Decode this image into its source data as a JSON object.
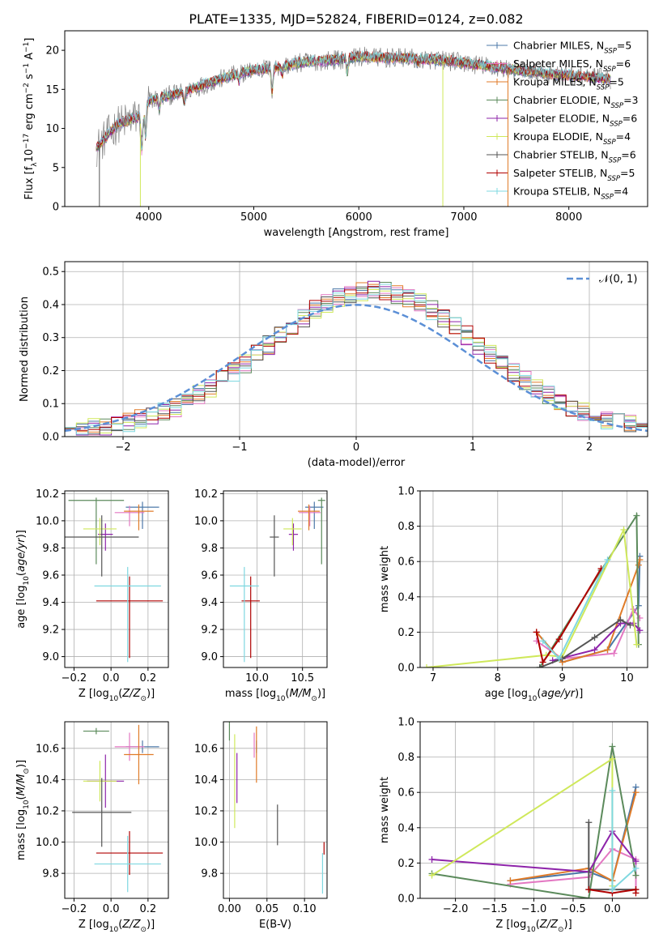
{
  "figure": {
    "title": "PLATE=1335, MJD=52824, FIBERID=0124, z=0.082"
  },
  "series_styles": [
    {
      "name": "Chabrier MILES",
      "nssp": "5",
      "color": "#4c78a8"
    },
    {
      "name": "Salpeter MILES",
      "nssp": "6",
      "color": "#e377c2"
    },
    {
      "name": "Kroupa MILES",
      "nssp": "5",
      "color": "#e07b28"
    },
    {
      "name": "Chabrier ELODIE",
      "nssp": "3",
      "color": "#5b8a5b"
    },
    {
      "name": "Salpeter ELODIE",
      "nssp": "6",
      "color": "#8e24aa"
    },
    {
      "name": "Kroupa ELODIE",
      "nssp": "4",
      "color": "#cfe85a"
    },
    {
      "name": "Chabrier STELIB",
      "nssp": "6",
      "color": "#555555"
    },
    {
      "name": "Salpeter STELIB",
      "nssp": "5",
      "color": "#b00000"
    },
    {
      "name": "Kroupa STELIB",
      "nssp": "4",
      "color": "#7fd8e0"
    }
  ],
  "chart_data": [
    {
      "id": "spectrum",
      "type": "line",
      "xlabel": "wavelength [Angstrom, rest frame]",
      "ylabel": "Flux [f_λ 10^-17 erg cm^-2 s^-1 A^-1]",
      "xlim": [
        3200,
        8750
      ],
      "ylim": [
        0,
        22.5
      ],
      "xticks": [
        4000,
        5000,
        6000,
        7000,
        8000
      ],
      "yticks": [
        0,
        5,
        10,
        15,
        20
      ],
      "grid": false,
      "legend_position": "right",
      "observed_color": "#808080",
      "observed_range": [
        3500,
        8400
      ],
      "model_range": [
        3500,
        8400
      ],
      "continuum": {
        "x": [
          3500,
          3700,
          3900,
          4000,
          4100,
          4300,
          4500,
          4800,
          5000,
          5200,
          5500,
          5800,
          6000,
          6300,
          6500,
          6800,
          7000,
          7300,
          7600,
          8000,
          8400
        ],
        "y": [
          7.5,
          10.5,
          11.5,
          13.5,
          14.0,
          14.5,
          15.5,
          16.8,
          17.5,
          17.8,
          18.5,
          18.8,
          19.2,
          19.0,
          19.0,
          18.7,
          18.4,
          17.8,
          17.3,
          16.8,
          16.3
        ]
      },
      "absorption_lines": [
        {
          "x": 3934,
          "depth": 5.0
        },
        {
          "x": 3969,
          "depth": 4.0
        },
        {
          "x": 4101,
          "depth": 1.5
        },
        {
          "x": 4340,
          "depth": 1.5
        },
        {
          "x": 4861,
          "depth": 1.0
        },
        {
          "x": 5175,
          "depth": 3.0
        },
        {
          "x": 5270,
          "depth": 1.0
        },
        {
          "x": 5890,
          "depth": 1.8
        },
        {
          "x": 6563,
          "depth": 0.8
        }
      ],
      "model_dropouts": [
        {
          "x": 3530,
          "color_index": 6
        },
        {
          "x": 3920,
          "color_index": 5
        },
        {
          "x": 6800,
          "color_index": 5
        },
        {
          "x": 7420,
          "color_index": 2
        }
      ]
    },
    {
      "id": "residuals",
      "type": "histogram",
      "xlabel": "(data-model)/error",
      "ylabel": "Normed distribution",
      "xlim": [
        -2.5,
        2.5
      ],
      "ylim": [
        0,
        0.53
      ],
      "xticks": [
        -2,
        -1,
        0,
        1,
        2
      ],
      "yticks": [
        0.0,
        0.1,
        0.2,
        0.3,
        0.4,
        0.5
      ],
      "grid": true,
      "bin_width": 0.1,
      "reference_curve": {
        "label": "𝒩(0, 1)",
        "color": "#5b8fd6",
        "mean": 0,
        "sigma": 1
      },
      "legend_position": "top-right"
    },
    {
      "id": "age-vs-z",
      "type": "errorbar",
      "xlabel": "Z [log10(Z/Z⊙)]",
      "ylabel": "age  [log10(age/yr)]",
      "xlim": [
        -0.25,
        0.31
      ],
      "ylim": [
        8.92,
        10.22
      ],
      "xticks": [
        -0.2,
        0.0,
        0.2
      ],
      "yticks": [
        9.0,
        9.2,
        9.4,
        9.6,
        9.8,
        10.0,
        10.2
      ],
      "grid": true,
      "points": [
        {
          "s": 0,
          "x": 0.17,
          "y": 10.1,
          "xerr": 0.09,
          "yerr": [
            0.04,
            0.16
          ]
        },
        {
          "s": 1,
          "x": 0.1,
          "y": 10.06,
          "xerr": 0.08,
          "yerr": [
            0.05,
            0.1
          ]
        },
        {
          "s": 2,
          "x": 0.15,
          "y": 10.07,
          "xerr": 0.08,
          "yerr": [
            0.05,
            0.14
          ]
        },
        {
          "s": 3,
          "x": -0.08,
          "y": 10.15,
          "xerr": 0.15,
          "yerr": [
            0.02,
            0.47
          ]
        },
        {
          "s": 4,
          "x": -0.03,
          "y": 9.9,
          "xerr": 0.04,
          "yerr": [
            0.08,
            0.12
          ]
        },
        {
          "s": 5,
          "x": -0.06,
          "y": 9.94,
          "xerr": 0.09,
          "yerr": [
            0.08,
            0.12
          ]
        },
        {
          "s": 6,
          "x": -0.05,
          "y": 9.88,
          "xerr": 0.2,
          "yerr": [
            0.16,
            0.29
          ]
        },
        {
          "s": 7,
          "x": 0.1,
          "y": 9.41,
          "xerr": 0.18,
          "yerr": [
            0.18,
            0.42
          ]
        },
        {
          "s": 8,
          "x": 0.09,
          "y": 9.52,
          "xerr": 0.18,
          "yerr": [
            0.14,
            0.56
          ]
        }
      ]
    },
    {
      "id": "age-vs-mass",
      "type": "errorbar",
      "xlabel": "mass [log10(M/M⊙)]",
      "ylabel": "",
      "xlim": [
        9.63,
        10.77
      ],
      "ylim": [
        8.92,
        10.22
      ],
      "xticks": [
        10.0,
        10.5
      ],
      "yticks": [
        9.0,
        9.2,
        9.4,
        9.6,
        9.8,
        10.0,
        10.2
      ],
      "grid": true,
      "points": [
        {
          "s": 0,
          "x": 10.63,
          "y": 10.1,
          "xerr": 0.1,
          "yerr": [
            0.04,
            0.16
          ]
        },
        {
          "s": 1,
          "x": 10.58,
          "y": 10.06,
          "xerr": 0.12,
          "yerr": [
            0.05,
            0.1
          ]
        },
        {
          "s": 2,
          "x": 10.57,
          "y": 10.07,
          "xerr": 0.12,
          "yerr": [
            0.05,
            0.14
          ]
        },
        {
          "s": 3,
          "x": 10.71,
          "y": 10.15,
          "xerr": 0.04,
          "yerr": [
            0.02,
            0.47
          ]
        },
        {
          "s": 4,
          "x": 10.4,
          "y": 9.9,
          "xerr": 0.05,
          "yerr": [
            0.08,
            0.12
          ]
        },
        {
          "s": 5,
          "x": 10.39,
          "y": 9.94,
          "xerr": 0.1,
          "yerr": [
            0.08,
            0.12
          ]
        },
        {
          "s": 6,
          "x": 10.19,
          "y": 9.88,
          "xerr": 0.05,
          "yerr": [
            0.16,
            0.29
          ]
        },
        {
          "s": 7,
          "x": 9.93,
          "y": 9.41,
          "xerr": 0.1,
          "yerr": [
            0.18,
            0.42
          ]
        },
        {
          "s": 8,
          "x": 9.86,
          "y": 9.52,
          "xerr": 0.16,
          "yerr": [
            0.14,
            0.56
          ]
        }
      ]
    },
    {
      "id": "mass-weight-vs-age",
      "type": "line",
      "xlabel": "age  [log10(age/yr)]",
      "ylabel": "mass weight",
      "xlim": [
        6.8,
        10.32
      ],
      "ylim": [
        0,
        1.0
      ],
      "xticks": [
        7,
        8,
        9,
        10
      ],
      "yticks": [
        0.0,
        0.2,
        0.4,
        0.6,
        0.8,
        1.0
      ],
      "grid": true,
      "series": [
        {
          "s": 0,
          "x": [
            8.6,
            9.0,
            9.7,
            10.18,
            10.2
          ],
          "y": [
            0.2,
            0.03,
            0.1,
            0.35,
            0.63
          ]
        },
        {
          "s": 1,
          "x": [
            8.6,
            9.0,
            9.8,
            10.1,
            10.2
          ],
          "y": [
            0.15,
            0.05,
            0.08,
            0.33,
            0.28
          ]
        },
        {
          "s": 2,
          "x": [
            8.6,
            9.0,
            9.7,
            10.18,
            10.2
          ],
          "y": [
            0.2,
            0.03,
            0.1,
            0.58,
            0.61
          ]
        },
        {
          "s": 3,
          "x": [
            8.65,
            9.6,
            10.15,
            10.18
          ],
          "y": [
            0.0,
            0.55,
            0.86,
            0.13
          ]
        },
        {
          "s": 4,
          "x": [
            8.85,
            9.5,
            9.9,
            10.1,
            10.2
          ],
          "y": [
            0.04,
            0.1,
            0.25,
            0.25,
            0.21
          ]
        },
        {
          "s": 5,
          "x": [
            6.9,
            8.75,
            9.0,
            9.95,
            10.15
          ],
          "y": [
            0.0,
            0.07,
            0.06,
            0.78,
            0.13
          ]
        },
        {
          "s": 6,
          "x": [
            8.65,
            9.0,
            9.5,
            9.9,
            10.05
          ],
          "y": [
            0.0,
            0.05,
            0.17,
            0.27,
            0.24
          ]
        },
        {
          "s": 7,
          "x": [
            8.6,
            8.7,
            8.95,
            9.6
          ],
          "y": [
            0.2,
            0.03,
            0.16,
            0.56
          ]
        },
        {
          "s": 8,
          "x": [
            8.7,
            8.95,
            9.7
          ],
          "y": [
            0.15,
            0.05,
            0.61
          ]
        }
      ]
    },
    {
      "id": "mass-vs-z",
      "type": "errorbar",
      "xlabel": "Z [log10(Z/Z⊙)]",
      "ylabel": "mass [log10(M/M⊙)]",
      "xlim": [
        -0.25,
        0.31
      ],
      "ylim": [
        9.64,
        10.77
      ],
      "xticks": [
        -0.2,
        0.0,
        0.2
      ],
      "yticks": [
        9.8,
        10.0,
        10.2,
        10.4,
        10.6
      ],
      "grid": true,
      "points": [
        {
          "s": 0,
          "x": 0.17,
          "y": 10.61,
          "xerr": 0.09,
          "yerr": 0.04
        },
        {
          "s": 1,
          "x": 0.1,
          "y": 10.61,
          "xerr": 0.08,
          "yerr": 0.09
        },
        {
          "s": 2,
          "x": 0.15,
          "y": 10.56,
          "xerr": 0.08,
          "yerr": 0.19
        },
        {
          "s": 3,
          "x": -0.08,
          "y": 10.71,
          "xerr": 0.07,
          "yerr": 0.02
        },
        {
          "s": 4,
          "x": -0.03,
          "y": 10.39,
          "xerr": 0.1,
          "yerr": 0.17
        },
        {
          "s": 5,
          "x": -0.06,
          "y": 10.39,
          "xerr": 0.09,
          "yerr": 0.13
        },
        {
          "s": 6,
          "x": -0.05,
          "y": 10.19,
          "xerr": 0.16,
          "yerr": 0.22
        },
        {
          "s": 7,
          "x": 0.1,
          "y": 9.93,
          "xerr": 0.18,
          "yerr": 0.14
        },
        {
          "s": 8,
          "x": 0.09,
          "y": 9.86,
          "xerr": 0.18,
          "yerr": 0.18
        }
      ]
    },
    {
      "id": "mass-vs-ebv",
      "type": "errorbar",
      "xlabel": "E(B-V)",
      "ylabel": "",
      "xlim": [
        -0.008,
        0.13
      ],
      "ylim": [
        9.64,
        10.77
      ],
      "xticks": [
        0.0,
        0.05,
        0.1
      ],
      "yticks": [
        9.8,
        10.0,
        10.2,
        10.4,
        10.6
      ],
      "grid": true,
      "points": [
        {
          "s": 0,
          "x": 0.036,
          "y": 10.61,
          "xerr": 0,
          "yerr": 0.04
        },
        {
          "s": 1,
          "x": 0.033,
          "y": 10.62,
          "xerr": 0,
          "yerr": 0.08
        },
        {
          "s": 2,
          "x": 0.036,
          "y": 10.56,
          "xerr": 0,
          "yerr": 0.18
        },
        {
          "s": 3,
          "x": 0.0,
          "y": 10.71,
          "xerr": 0,
          "yerr": 0.06
        },
        {
          "s": 4,
          "x": 0.01,
          "y": 10.41,
          "xerr": 0,
          "yerr": 0.16
        },
        {
          "s": 5,
          "x": 0.007,
          "y": 10.39,
          "xerr": 0,
          "yerr": 0.3
        },
        {
          "s": 6,
          "x": 0.064,
          "y": 10.11,
          "xerr": 0,
          "yerr": 0.13
        },
        {
          "s": 7,
          "x": 0.126,
          "y": 9.96,
          "xerr": 0,
          "yerr": 0.04
        },
        {
          "s": 8,
          "x": 0.124,
          "y": 9.8,
          "xerr": 0,
          "yerr": 0.13
        }
      ]
    },
    {
      "id": "mass-weight-vs-z",
      "type": "line",
      "xlabel": "Z [log10(Z/Z⊙)]",
      "ylabel": "mass weight",
      "xlim": [
        -2.45,
        0.45
      ],
      "ylim": [
        0,
        1.0
      ],
      "xticks": [
        -2.0,
        -1.5,
        -1.0,
        -0.5,
        0.0
      ],
      "yticks": [
        0.0,
        0.2,
        0.4,
        0.6,
        0.8,
        1.0
      ],
      "grid": true,
      "series": [
        {
          "s": 0,
          "x": [
            -1.3,
            -0.3,
            0.0,
            0.3
          ],
          "y": [
            0.1,
            0.15,
            0.1,
            0.63
          ]
        },
        {
          "s": 1,
          "x": [
            -1.3,
            -0.3,
            0.0,
            0.3,
            0.3
          ],
          "y": [
            0.08,
            0.12,
            0.28,
            0.22,
            0.05
          ]
        },
        {
          "s": 2,
          "x": [
            -1.3,
            -0.3,
            0.0,
            0.3
          ],
          "y": [
            0.1,
            0.17,
            0.1,
            0.6
          ]
        },
        {
          "s": 3,
          "x": [
            -2.3,
            -0.3,
            0.0,
            0.3
          ],
          "y": [
            0.14,
            0.0,
            0.86,
            0.13
          ]
        },
        {
          "s": 4,
          "x": [
            -2.3,
            -0.3,
            0.0,
            0.3
          ],
          "y": [
            0.22,
            0.15,
            0.38,
            0.21
          ]
        },
        {
          "s": 5,
          "x": [
            -2.3,
            0.0,
            0.0
          ],
          "y": [
            0.13,
            0.79,
            0.07
          ]
        },
        {
          "s": 6,
          "x": [
            -0.3,
            -0.3,
            0.0,
            0.3
          ],
          "y": [
            0.43,
            0.05,
            0.05,
            0.05
          ]
        },
        {
          "s": 7,
          "x": [
            -0.3,
            0.0,
            0.3,
            0.3
          ],
          "y": [
            0.05,
            0.03,
            0.05,
            0.03
          ]
        },
        {
          "s": 8,
          "x": [
            0.0,
            0.0,
            0.3
          ],
          "y": [
            0.61,
            0.05,
            0.17
          ]
        }
      ]
    }
  ]
}
